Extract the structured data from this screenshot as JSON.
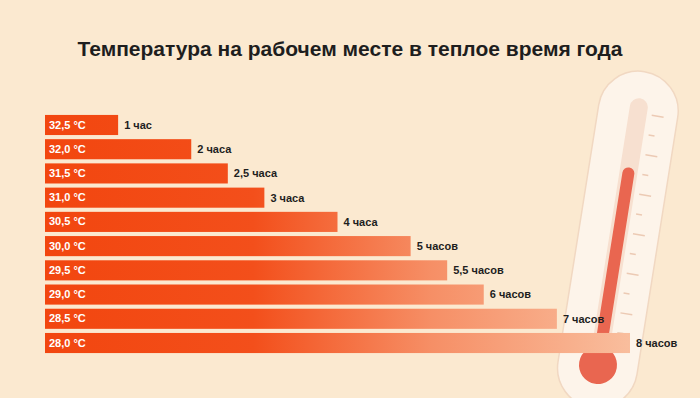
{
  "chart_data": {
    "type": "bar",
    "orientation": "horizontal",
    "title": "Температура на рабочем месте в теплое время года",
    "categories": [
      "32,5 °C",
      "32,0 °C",
      "31,5 °C",
      "31,0 °C",
      "30,5 °C",
      "30,0 °C",
      "29,5 °C",
      "29,0 °C",
      "28,5 °C",
      "28,0 °C"
    ],
    "values": [
      1,
      2,
      2.5,
      3,
      4,
      5,
      5.5,
      6,
      7,
      8
    ],
    "value_labels": [
      "1 час",
      "2 часа",
      "2,5 часа",
      "3 часа",
      "4 часа",
      "5 часов",
      "5,5 часов",
      "6 часов",
      "7 часов",
      "8 часов"
    ],
    "color": "#f2460f",
    "xlim": [
      0,
      8
    ],
    "grid": false,
    "data_labels": true,
    "tick_labels": "y"
  }
}
